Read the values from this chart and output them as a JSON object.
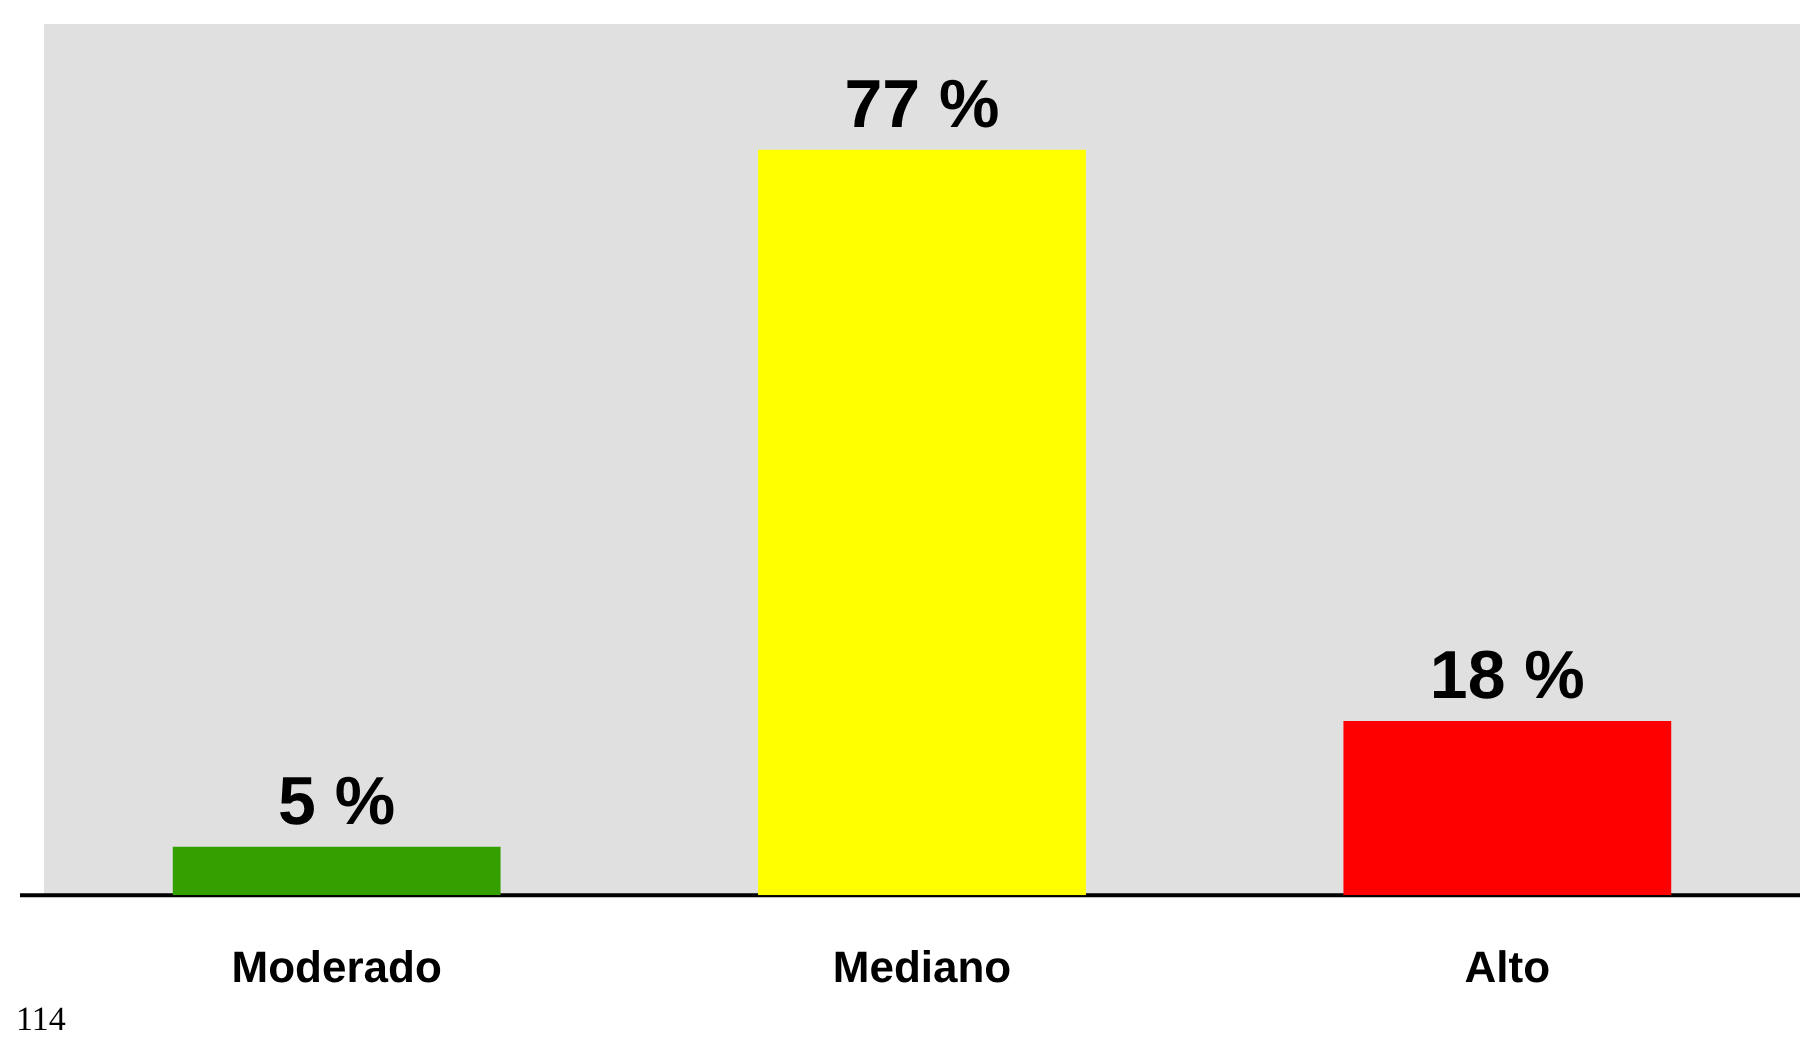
{
  "chart_data": {
    "type": "bar",
    "categories": [
      "Moderado",
      "Mediano",
      "Alto"
    ],
    "values": [
      5,
      77,
      18
    ],
    "colors": [
      "#33a000",
      "#ffff00",
      "#ff0000"
    ],
    "value_labels": [
      "5 %",
      "77 %",
      "18 %"
    ],
    "tick_labels": "x",
    "legend": false,
    "annotations": [
      "114"
    ]
  }
}
